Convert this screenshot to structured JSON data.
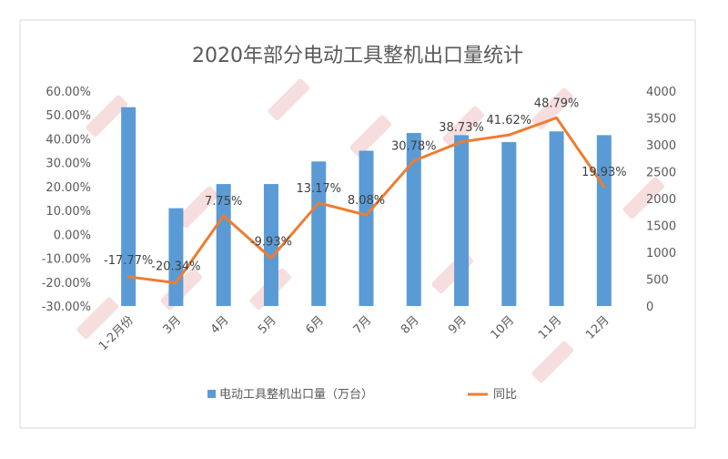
{
  "chart_data": {
    "type": "bar",
    "title": "2020年部分电动工具整机出口量统计",
    "categories": [
      "1-2月份",
      "3月",
      "4月",
      "5月",
      "6月",
      "7月",
      "8月",
      "9月",
      "10月",
      "11月",
      "12月"
    ],
    "series": [
      {
        "name": "电动工具整机出口量（万台）",
        "type": "bar",
        "axis": "right",
        "color": "#5B9BD5",
        "values": [
          3700,
          1820,
          2270,
          2270,
          2690,
          2890,
          3220,
          3180,
          3050,
          3250,
          3180
        ]
      },
      {
        "name": "同比",
        "type": "line",
        "axis": "left",
        "color": "#ED7D31",
        "values": [
          -17.77,
          -20.34,
          7.75,
          -9.93,
          13.17,
          8.08,
          30.78,
          38.73,
          41.62,
          48.79,
          19.93
        ],
        "labels": [
          "-17.77%",
          "-20.34%",
          "7.75%",
          "-9.93%",
          "13.17%",
          "8.08%",
          "30.78%",
          "38.73%",
          "41.62%",
          "48.79%",
          "19.93%"
        ]
      }
    ],
    "y_left": {
      "min": -30,
      "max": 60,
      "step": 10,
      "ticks": [
        "60.00%",
        "50.00%",
        "40.00%",
        "30.00%",
        "20.00%",
        "10.00%",
        "0.00%",
        "-10.00%",
        "-20.00%",
        "-30.00%"
      ]
    },
    "y_right": {
      "min": 0,
      "max": 4000,
      "step": 500,
      "ticks": [
        "4000",
        "3500",
        "3000",
        "2500",
        "2000",
        "1500",
        "1000",
        "500",
        "0"
      ]
    },
    "legend_position": "bottom",
    "grid": false,
    "colors": {
      "bar": "#5B9BD5",
      "line": "#ED7D31",
      "text": "#595959",
      "title": "#595959",
      "border": "#D9D9D9",
      "watermark": "#E8A0A0"
    }
  }
}
